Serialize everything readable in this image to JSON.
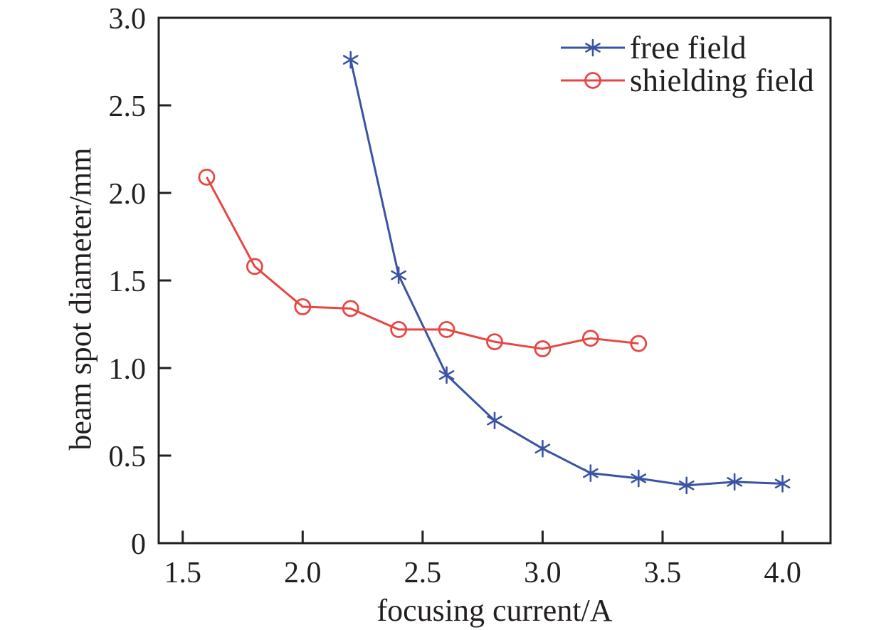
{
  "figure": {
    "background": "#ffffff"
  },
  "colors": {
    "axis": "#231f20",
    "text": "#231f20",
    "background": "#ffffff"
  },
  "chart_data": {
    "type": "line",
    "title": "",
    "xlabel": "focusing current/A",
    "ylabel": "beam spot diameter/mm",
    "xlim": [
      1.4,
      4.2
    ],
    "ylim": [
      0,
      3.0
    ],
    "x_ticks": [
      1.5,
      2.0,
      2.5,
      3.0,
      3.5,
      4.0
    ],
    "x_tick_labels": [
      "1.5",
      "2.0",
      "2.5",
      "3.0",
      "3.5",
      "4.0"
    ],
    "y_ticks": [
      0,
      0.5,
      1.0,
      1.5,
      2.0,
      2.5,
      3.0
    ],
    "y_tick_labels": [
      "0",
      "0.5",
      "1.0",
      "1.5",
      "2.0",
      "2.5",
      "3.0"
    ],
    "grid": false,
    "legend_position": "top-right",
    "series": [
      {
        "name": "free field",
        "color": "#3a53a5",
        "marker": "asterisk",
        "x": [
          2.2,
          2.4,
          2.6,
          2.8,
          3.0,
          3.2,
          3.4,
          3.6,
          3.8,
          4.0
        ],
        "values": [
          2.76,
          1.53,
          0.96,
          0.7,
          0.54,
          0.4,
          0.37,
          0.33,
          0.35,
          0.34
        ]
      },
      {
        "name": "shielding field",
        "color": "#e74743",
        "marker": "circle",
        "x": [
          1.6,
          1.8,
          2.0,
          2.2,
          2.4,
          2.6,
          2.8,
          3.0,
          3.2,
          3.4
        ],
        "values": [
          2.09,
          1.58,
          1.35,
          1.34,
          1.22,
          1.22,
          1.15,
          1.11,
          1.17,
          1.14
        ]
      }
    ]
  }
}
